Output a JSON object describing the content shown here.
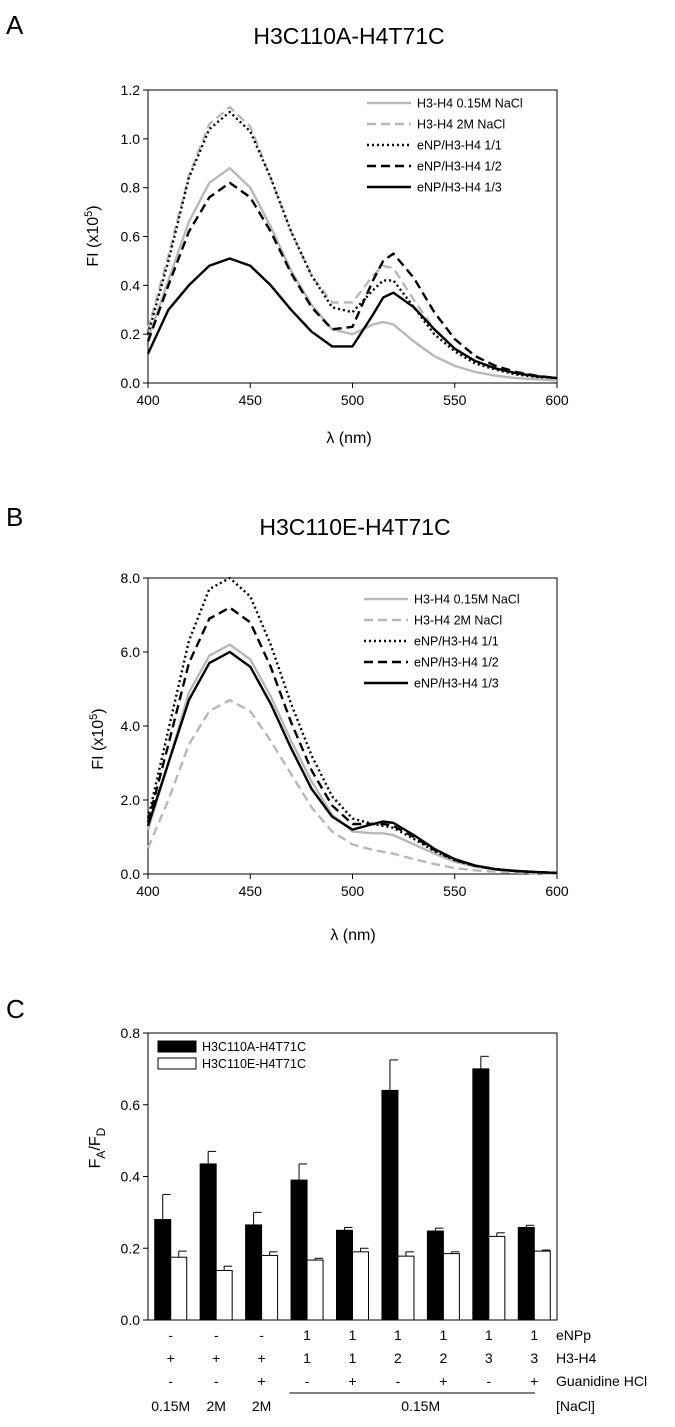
{
  "chart_data": [
    {
      "panel": "A",
      "type": "line",
      "title": "H3C110A-H4T71C",
      "xlabel": "λ (nm)",
      "ylabel": "FI (x10",
      "ylabel_sup": "5",
      "ylabel_end": ")",
      "xlim": [
        400,
        600
      ],
      "ylim": [
        0,
        1.2
      ],
      "xticks": [
        "400",
        "450",
        "500",
        "550",
        "600"
      ],
      "yticks": [
        "0.0",
        "0.2",
        "0.4",
        "0.6",
        "0.8",
        "1.0",
        "1.2"
      ],
      "legend_position": "top-right",
      "series": [
        {
          "name": "H3-H4 0.15M NaCl",
          "color": "#b8b8b8",
          "dash": "solid",
          "x": [
            400,
            410,
            420,
            430,
            440,
            450,
            460,
            470,
            480,
            490,
            500,
            510,
            515,
            520,
            530,
            540,
            550,
            560,
            570,
            580,
            590,
            600
          ],
          "y": [
            0.18,
            0.42,
            0.66,
            0.82,
            0.88,
            0.8,
            0.64,
            0.46,
            0.32,
            0.22,
            0.2,
            0.24,
            0.25,
            0.24,
            0.17,
            0.11,
            0.07,
            0.045,
            0.03,
            0.02,
            0.015,
            0.01
          ]
        },
        {
          "name": "H3-H4 2M NaCl",
          "color": "#b8b8b8",
          "dash": "dashed",
          "x": [
            400,
            410,
            420,
            430,
            440,
            450,
            460,
            470,
            480,
            490,
            500,
            510,
            515,
            520,
            530,
            540,
            550,
            560,
            570,
            580,
            590,
            600
          ],
          "y": [
            0.22,
            0.52,
            0.85,
            1.06,
            1.13,
            1.05,
            0.84,
            0.62,
            0.44,
            0.33,
            0.33,
            0.44,
            0.48,
            0.47,
            0.34,
            0.22,
            0.14,
            0.09,
            0.06,
            0.04,
            0.025,
            0.02
          ]
        },
        {
          "name": "eNP/H3-H4 1/1",
          "color": "#000000",
          "dash": "dotted",
          "x": [
            400,
            410,
            420,
            430,
            440,
            450,
            460,
            470,
            480,
            490,
            500,
            510,
            515,
            520,
            530,
            540,
            550,
            560,
            570,
            580,
            590,
            600
          ],
          "y": [
            0.2,
            0.5,
            0.84,
            1.04,
            1.11,
            1.03,
            0.84,
            0.62,
            0.44,
            0.31,
            0.29,
            0.38,
            0.42,
            0.42,
            0.31,
            0.2,
            0.13,
            0.08,
            0.055,
            0.035,
            0.025,
            0.02
          ]
        },
        {
          "name": "eNP/H3-H4 1/2",
          "color": "#000000",
          "dash": "dashed",
          "x": [
            400,
            410,
            420,
            430,
            440,
            450,
            460,
            470,
            480,
            490,
            500,
            510,
            515,
            520,
            530,
            540,
            550,
            560,
            570,
            580,
            590,
            600
          ],
          "y": [
            0.17,
            0.4,
            0.62,
            0.76,
            0.82,
            0.76,
            0.62,
            0.45,
            0.31,
            0.22,
            0.23,
            0.42,
            0.5,
            0.53,
            0.43,
            0.29,
            0.18,
            0.11,
            0.07,
            0.045,
            0.03,
            0.02
          ]
        },
        {
          "name": "eNP/H3-H4 1/3",
          "color": "#000000",
          "dash": "solid",
          "x": [
            400,
            410,
            420,
            430,
            440,
            450,
            460,
            470,
            480,
            490,
            500,
            510,
            515,
            520,
            530,
            540,
            550,
            560,
            570,
            580,
            590,
            600
          ],
          "y": [
            0.12,
            0.3,
            0.4,
            0.48,
            0.51,
            0.48,
            0.4,
            0.3,
            0.21,
            0.15,
            0.15,
            0.28,
            0.35,
            0.37,
            0.31,
            0.22,
            0.14,
            0.09,
            0.06,
            0.04,
            0.028,
            0.02
          ]
        }
      ]
    },
    {
      "panel": "B",
      "type": "line",
      "title": "H3C110E-H4T71C",
      "xlabel": "λ (nm)",
      "ylabel": "FI (x10",
      "ylabel_sup": "5",
      "ylabel_end": ")",
      "xlim": [
        400,
        600
      ],
      "ylim": [
        0,
        8.0
      ],
      "xticks": [
        "400",
        "450",
        "500",
        "550",
        "600"
      ],
      "yticks": [
        "0.0",
        "2.0",
        "4.0",
        "6.0",
        "8.0"
      ],
      "legend_position": "top-right",
      "series": [
        {
          "name": "H3-H4 0.15M NaCl",
          "color": "#b8b8b8",
          "dash": "solid",
          "x": [
            400,
            410,
            420,
            430,
            440,
            450,
            460,
            470,
            480,
            490,
            500,
            510,
            515,
            520,
            530,
            540,
            550,
            560,
            570,
            580,
            590,
            600
          ],
          "y": [
            1.2,
            3.0,
            4.9,
            5.9,
            6.2,
            5.8,
            4.8,
            3.6,
            2.5,
            1.6,
            1.15,
            1.1,
            1.1,
            1.05,
            0.8,
            0.55,
            0.33,
            0.2,
            0.12,
            0.07,
            0.04,
            0.02
          ]
        },
        {
          "name": "H3-H4 2M NaCl",
          "color": "#b8b8b8",
          "dash": "dashed",
          "x": [
            400,
            410,
            420,
            430,
            440,
            450,
            460,
            470,
            480,
            490,
            500,
            510,
            515,
            520,
            530,
            540,
            550,
            560,
            570,
            580,
            590,
            600
          ],
          "y": [
            0.7,
            2.0,
            3.5,
            4.4,
            4.7,
            4.4,
            3.6,
            2.7,
            1.8,
            1.15,
            0.8,
            0.65,
            0.6,
            0.55,
            0.4,
            0.27,
            0.16,
            0.1,
            0.06,
            0.04,
            0.02,
            0.01
          ]
        },
        {
          "name": "eNP/H3-H4 1/1",
          "color": "#000000",
          "dash": "dotted",
          "x": [
            400,
            410,
            420,
            430,
            440,
            450,
            460,
            470,
            480,
            490,
            500,
            510,
            515,
            520,
            530,
            540,
            550,
            560,
            570,
            580,
            590,
            600
          ],
          "y": [
            1.5,
            3.9,
            6.3,
            7.7,
            8.0,
            7.5,
            6.2,
            4.6,
            3.2,
            2.1,
            1.5,
            1.35,
            1.3,
            1.25,
            0.95,
            0.62,
            0.37,
            0.22,
            0.13,
            0.08,
            0.05,
            0.03
          ]
        },
        {
          "name": "eNP/H3-H4 1/2",
          "color": "#000000",
          "dash": "dashed",
          "x": [
            400,
            410,
            420,
            430,
            440,
            450,
            460,
            470,
            480,
            490,
            500,
            510,
            515,
            520,
            530,
            540,
            550,
            560,
            570,
            580,
            590,
            600
          ],
          "y": [
            1.4,
            3.5,
            5.7,
            6.9,
            7.2,
            6.8,
            5.6,
            4.1,
            2.8,
            1.85,
            1.35,
            1.35,
            1.35,
            1.3,
            1.0,
            0.65,
            0.38,
            0.22,
            0.13,
            0.08,
            0.05,
            0.03
          ]
        },
        {
          "name": "eNP/H3-H4 1/3",
          "color": "#000000",
          "dash": "solid",
          "x": [
            400,
            410,
            420,
            430,
            440,
            450,
            460,
            470,
            480,
            490,
            500,
            510,
            515,
            520,
            530,
            540,
            550,
            560,
            570,
            580,
            590,
            600
          ],
          "y": [
            1.3,
            3.0,
            4.7,
            5.7,
            6.0,
            5.6,
            4.6,
            3.4,
            2.3,
            1.55,
            1.2,
            1.35,
            1.42,
            1.38,
            1.05,
            0.68,
            0.4,
            0.23,
            0.13,
            0.08,
            0.05,
            0.03
          ]
        }
      ]
    },
    {
      "panel": "C",
      "type": "bar",
      "ylabel": "F",
      "ylabel_sub1": "A",
      "ylabel_mid": "/F",
      "ylabel_sub2": "D",
      "ylim": [
        0,
        0.8
      ],
      "yticks": [
        "0.0",
        "0.2",
        "0.4",
        "0.6",
        "0.8"
      ],
      "legend_position": "top-left",
      "series": [
        {
          "name": "H3C110A-H4T71C",
          "color": "#000000",
          "values": [
            0.28,
            0.435,
            0.265,
            0.39,
            0.25,
            0.64,
            0.248,
            0.7,
            0.258
          ],
          "errors": [
            0.07,
            0.035,
            0.035,
            0.045,
            0.008,
            0.085,
            0.008,
            0.035,
            0.006
          ]
        },
        {
          "name": "H3C110E-H4T71C",
          "color": "#ffffff",
          "values": [
            0.175,
            0.138,
            0.18,
            0.167,
            0.19,
            0.178,
            0.185,
            0.233,
            0.192
          ],
          "errors": [
            0.017,
            0.012,
            0.01,
            0.005,
            0.01,
            0.012,
            0.005,
            0.01,
            0.003
          ]
        }
      ],
      "conditions": {
        "row_labels": [
          "eNPp",
          "H3-H4",
          "Guanidine HCl",
          "[NaCl]"
        ],
        "enp": [
          "-",
          "-",
          "-",
          "1",
          "1",
          "1",
          "1",
          "1",
          "1"
        ],
        "h3h4": [
          "+",
          "+",
          "+",
          "1",
          "1",
          "2",
          "2",
          "3",
          "3"
        ],
        "guanidine": [
          "-",
          "-",
          "+",
          "-",
          "+",
          "-",
          "+",
          "-",
          "+"
        ],
        "nacl": [
          "0.15M",
          "2M",
          "2M",
          "0.15M"
        ]
      }
    }
  ],
  "panel_labels": [
    "A",
    "B",
    "C"
  ]
}
